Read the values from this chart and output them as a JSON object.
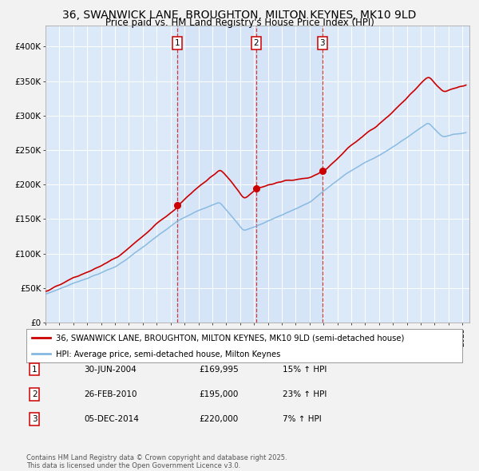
{
  "title": "36, SWANWICK LANE, BROUGHTON, MILTON KEYNES, MK10 9LD",
  "subtitle": "Price paid vs. HM Land Registry's House Price Index (HPI)",
  "title_fontsize": 10,
  "subtitle_fontsize": 8.5,
  "ylabel_ticks": [
    "£0",
    "£50K",
    "£100K",
    "£150K",
    "£200K",
    "£250K",
    "£300K",
    "£350K",
    "£400K"
  ],
  "ytick_values": [
    0,
    50000,
    100000,
    150000,
    200000,
    250000,
    300000,
    350000,
    400000
  ],
  "ylim": [
    0,
    430000
  ],
  "xlim_start": 1995.0,
  "xlim_end": 2025.5,
  "fig_bg": "#f2f2f2",
  "plot_bg": "#dce9f8",
  "grid_color": "#ffffff",
  "red_line_color": "#cc0000",
  "blue_line_color": "#85b8e0",
  "purchase1_date": 2004.5,
  "purchase1_price": 169995,
  "purchase2_date": 2010.15,
  "purchase2_price": 195000,
  "purchase3_date": 2014.92,
  "purchase3_price": 220000,
  "legend_red": "36, SWANWICK LANE, BROUGHTON, MILTON KEYNES, MK10 9LD (semi-detached house)",
  "legend_blue": "HPI: Average price, semi-detached house, Milton Keynes",
  "transaction1_label": "1",
  "transaction1_date_str": "30-JUN-2004",
  "transaction1_price_str": "£169,995",
  "transaction1_hpi_str": "15% ↑ HPI",
  "transaction2_label": "2",
  "transaction2_date_str": "26-FEB-2010",
  "transaction2_price_str": "£195,000",
  "transaction2_hpi_str": "23% ↑ HPI",
  "transaction3_label": "3",
  "transaction3_date_str": "05-DEC-2014",
  "transaction3_price_str": "£220,000",
  "transaction3_hpi_str": "7% ↑ HPI",
  "footnote": "Contains HM Land Registry data © Crown copyright and database right 2025.\nThis data is licensed under the Open Government Licence v3.0."
}
